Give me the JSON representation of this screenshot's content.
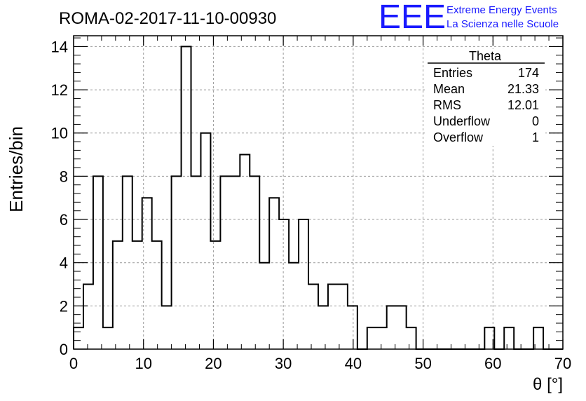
{
  "header": {
    "title": "ROMA-02-2017-11-10-00930",
    "logo_text": "EEE",
    "logo_line1": "Extreme Energy Events",
    "logo_line2": "La Scienza nelle Scuole"
  },
  "colors": {
    "logo": "#1a1aff",
    "line": "#000000",
    "grid": "#9a9a9a"
  },
  "stats": {
    "name": "Theta",
    "rows": [
      {
        "label": "Entries",
        "value": "174"
      },
      {
        "label": "Mean",
        "value": "21.33"
      },
      {
        "label": "RMS",
        "value": "12.01"
      },
      {
        "label": "Underflow",
        "value": "0"
      },
      {
        "label": "Overflow",
        "value": "1"
      }
    ]
  },
  "chart_data": {
    "type": "histogram",
    "xlabel": "θ [°]",
    "ylabel": "Entries/bin",
    "xlim": [
      0,
      70
    ],
    "ylim": [
      0,
      14.5
    ],
    "bin_width": 1.4,
    "bin_start": 0,
    "values": [
      1,
      3,
      8,
      1,
      5,
      8,
      5,
      7,
      5,
      2,
      8,
      14,
      8,
      10,
      5,
      8,
      8,
      9,
      8,
      4,
      7,
      6,
      4,
      6,
      3,
      2,
      3,
      3,
      2,
      0,
      1,
      1,
      2,
      2,
      1,
      0,
      0,
      0,
      0,
      0,
      0,
      0,
      1,
      0,
      1,
      0,
      0,
      1,
      0,
      0
    ],
    "x_ticks": [
      0,
      10,
      20,
      30,
      40,
      50,
      60,
      70
    ],
    "y_ticks": [
      0,
      2,
      4,
      6,
      8,
      10,
      12,
      14
    ],
    "grid": true,
    "log_scale": false
  }
}
